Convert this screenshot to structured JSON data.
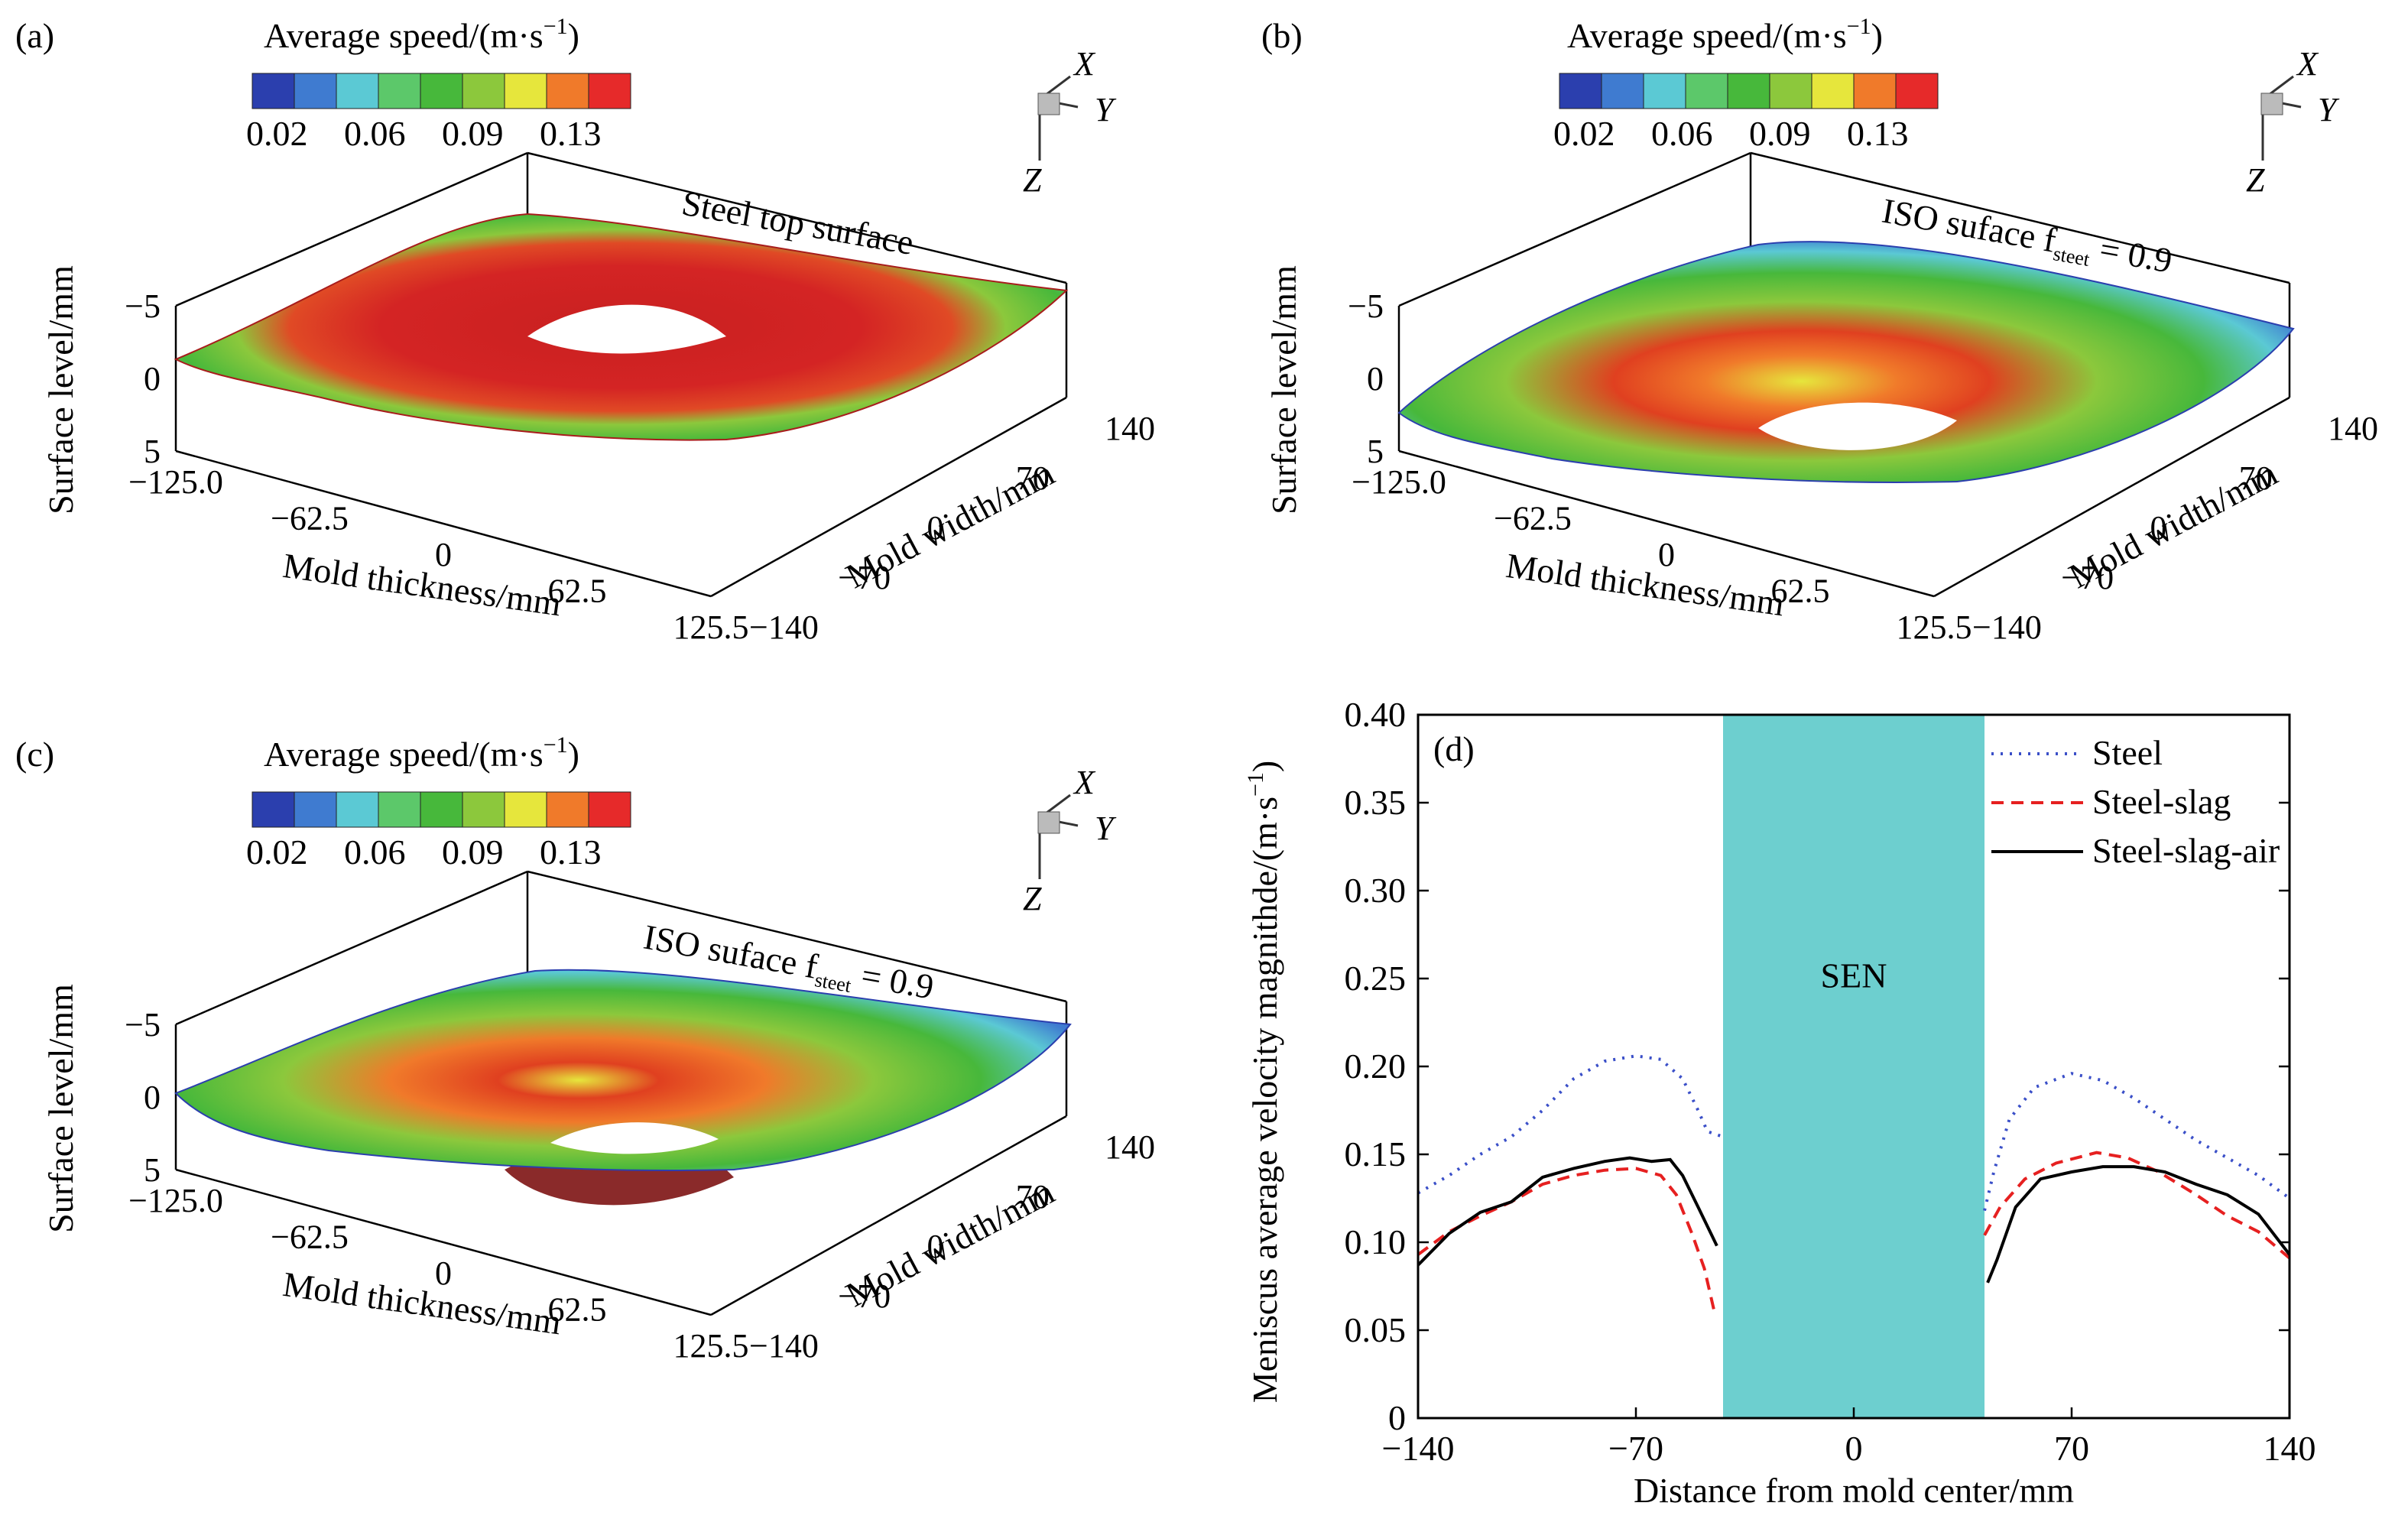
{
  "colorbar": {
    "title": "Average speed/(m·s",
    "title_sup": "−1",
    "title_end": ")",
    "ticks": [
      "0.02",
      "0.06",
      "0.09",
      "0.13"
    ],
    "colors": [
      "#2b3fae",
      "#3f7bd0",
      "#5bc9d4",
      "#5cc86a",
      "#47b83b",
      "#8cc83c",
      "#e6e63c",
      "#f07a2a",
      "#e62a2a"
    ]
  },
  "axes3d": {
    "x_dir": "X",
    "y_dir": "Y",
    "z_dir": "Z",
    "surface_label": "Surface level/mm",
    "surface_ticks": [
      "−5",
      "0",
      "5"
    ],
    "thickness_label": "Mold thickness/mm",
    "thickness_ticks": [
      "−125.0",
      "−62.5",
      "0",
      "62.5",
      "125.5"
    ],
    "width_label": "Mold width/mm",
    "width_ticks": [
      "−140",
      "−70",
      "0",
      "70",
      "140"
    ]
  },
  "panels": [
    {
      "label": "(a)",
      "annotation": "Steel top surface",
      "annotation_sub": "",
      "annotation_end": ""
    },
    {
      "label": "(b)",
      "annotation": "ISO suface f",
      "annotation_sub": "steet",
      "annotation_end": " = 0.9"
    },
    {
      "label": "(c)",
      "annotation": "ISO suface f",
      "annotation_sub": "steet",
      "annotation_end": " = 0.9"
    }
  ],
  "chart_data": {
    "type": "line",
    "panel_label": "(d)",
    "xlabel": "Distance from mold center/mm",
    "ylabel": "Meniscus average velocity magnithde/(m·s",
    "ylabel_sup": "−1",
    "ylabel_end": ")",
    "xlim": [
      -140,
      140
    ],
    "ylim": [
      0,
      0.4
    ],
    "xticks": [
      "−140",
      "−70",
      "0",
      "70",
      "140"
    ],
    "xtick_values": [
      -140,
      -70,
      0,
      70,
      140
    ],
    "yticks": [
      "0",
      "0.05",
      "0.10",
      "0.15",
      "0.20",
      "0.25",
      "0.30",
      "0.35",
      "0.40"
    ],
    "ytick_values": [
      0,
      0.05,
      0.1,
      0.15,
      0.2,
      0.25,
      0.3,
      0.35,
      0.4
    ],
    "band": {
      "label": "SEN",
      "x0": -42,
      "x1": 42,
      "color": "#6dcfcf"
    },
    "legend_position": "top-right",
    "series": [
      {
        "name": "Steel",
        "color": "#3a4fc8",
        "style": "dotted",
        "segments": [
          [
            [
              -140,
              0.128
            ],
            [
              -130,
              0.138
            ],
            [
              -120,
              0.15
            ],
            [
              -110,
              0.16
            ],
            [
              -100,
              0.175
            ],
            [
              -90,
              0.193
            ],
            [
              -80,
              0.203
            ],
            [
              -70,
              0.206
            ],
            [
              -62,
              0.204
            ],
            [
              -55,
              0.193
            ],
            [
              -50,
              0.175
            ],
            [
              -47,
              0.163
            ],
            [
              -42,
              0.16
            ]
          ],
          [
            [
              42,
              0.118
            ],
            [
              45,
              0.14
            ],
            [
              50,
              0.17
            ],
            [
              58,
              0.188
            ],
            [
              70,
              0.196
            ],
            [
              80,
              0.192
            ],
            [
              90,
              0.182
            ],
            [
              100,
              0.17
            ],
            [
              110,
              0.158
            ],
            [
              120,
              0.148
            ],
            [
              130,
              0.138
            ],
            [
              140,
              0.125
            ]
          ]
        ]
      },
      {
        "name": "Steel-slag",
        "color": "#e62020",
        "style": "dashed",
        "segments": [
          [
            [
              -140,
              0.093
            ],
            [
              -130,
              0.106
            ],
            [
              -120,
              0.115
            ],
            [
              -110,
              0.123
            ],
            [
              -100,
              0.133
            ],
            [
              -90,
              0.138
            ],
            [
              -80,
              0.141
            ],
            [
              -70,
              0.142
            ],
            [
              -62,
              0.138
            ],
            [
              -57,
              0.127
            ],
            [
              -52,
              0.105
            ],
            [
              -48,
              0.085
            ],
            [
              -45,
              0.062
            ]
          ],
          [
            [
              42,
              0.104
            ],
            [
              47,
              0.12
            ],
            [
              55,
              0.136
            ],
            [
              65,
              0.145
            ],
            [
              78,
              0.151
            ],
            [
              88,
              0.148
            ],
            [
              98,
              0.14
            ],
            [
              110,
              0.127
            ],
            [
              120,
              0.115
            ],
            [
              130,
              0.106
            ],
            [
              140,
              0.091
            ]
          ]
        ]
      },
      {
        "name": "Steel-slag-air",
        "color": "#000000",
        "style": "solid",
        "segments": [
          [
            [
              -140,
              0.087
            ],
            [
              -130,
              0.105
            ],
            [
              -120,
              0.117
            ],
            [
              -110,
              0.123
            ],
            [
              -100,
              0.137
            ],
            [
              -90,
              0.142
            ],
            [
              -80,
              0.146
            ],
            [
              -72,
              0.148
            ],
            [
              -65,
              0.146
            ],
            [
              -59,
              0.147
            ],
            [
              -55,
              0.138
            ],
            [
              -50,
              0.12
            ],
            [
              -44,
              0.098
            ]
          ],
          [
            [
              43,
              0.077
            ],
            [
              46,
              0.09
            ],
            [
              52,
              0.12
            ],
            [
              60,
              0.136
            ],
            [
              70,
              0.14
            ],
            [
              80,
              0.143
            ],
            [
              90,
              0.143
            ],
            [
              100,
              0.14
            ],
            [
              110,
              0.133
            ],
            [
              120,
              0.127
            ],
            [
              130,
              0.116
            ],
            [
              140,
              0.093
            ]
          ]
        ]
      }
    ]
  }
}
